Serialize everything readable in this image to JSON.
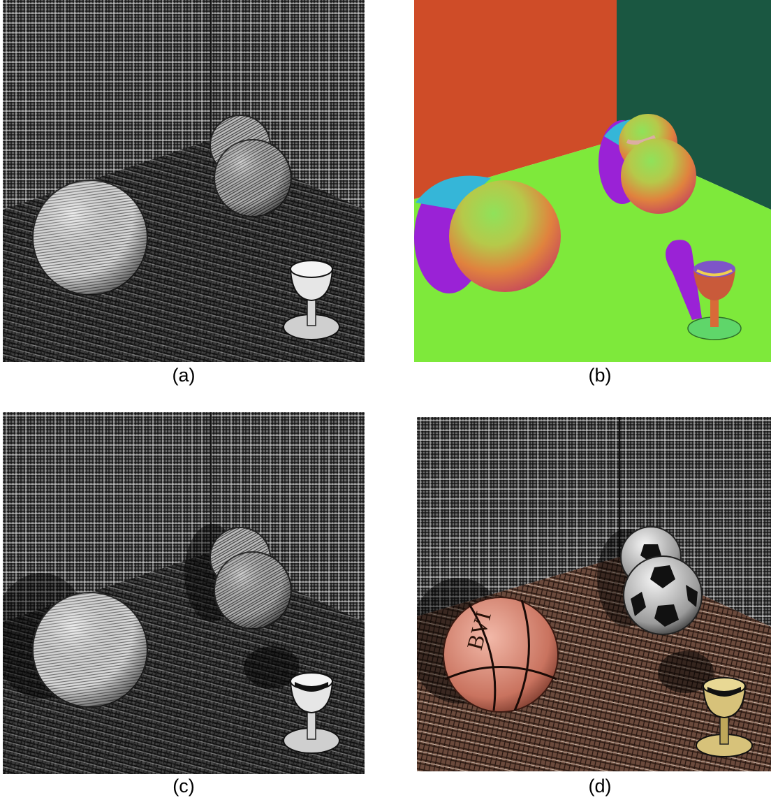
{
  "panels": [
    {
      "id": "a",
      "caption": "(a)",
      "style": "hatched-grayscale",
      "shadows": false,
      "textured_objects": false
    },
    {
      "id": "b",
      "caption": "(b)",
      "style": "normal-map-colors",
      "shadows": true,
      "textured_objects": false
    },
    {
      "id": "c",
      "caption": "(c)",
      "style": "hatched-grayscale",
      "shadows": true,
      "textured_objects": false
    },
    {
      "id": "d",
      "caption": "(d)",
      "style": "hatched-color",
      "shadows": true,
      "textured_objects": true,
      "basketball_text": "BVI"
    }
  ],
  "colors": {
    "left_wall_b": "#cf4c28",
    "right_wall_b": "#1a5741",
    "floor_b": "#7ee93b",
    "shadow_b": "#9a22d6",
    "basketball": "#d98a78",
    "floor_d": "#6b4a3c",
    "goblet_d": "#d7c27a"
  }
}
